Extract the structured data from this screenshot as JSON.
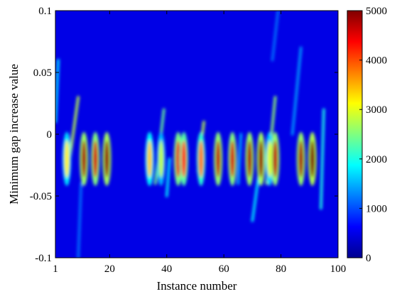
{
  "chart_data": {
    "type": "heatmap",
    "title": "",
    "xlabel": "Instance number",
    "ylabel": "Minimum gap increase value",
    "xlim": [
      1,
      100
    ],
    "ylim": [
      -0.1,
      0.1
    ],
    "x_ticks": [
      "1",
      "20",
      "40",
      "60",
      "80",
      "100"
    ],
    "y_ticks": [
      "-0.1",
      "-0.05",
      "0",
      "0.05",
      "0.1"
    ],
    "colorbar": {
      "colormap": "jet",
      "range": [
        0,
        5000
      ],
      "ticks": [
        "0",
        "1000",
        "2000",
        "3000",
        "4000",
        "5000"
      ]
    },
    "background_level": 500,
    "hotspots": [
      {
        "instance": 5,
        "gap": -0.02,
        "value": 3200
      },
      {
        "instance": 11,
        "gap": -0.02,
        "value": 4800
      },
      {
        "instance": 15,
        "gap": -0.02,
        "value": 4600
      },
      {
        "instance": 19,
        "gap": -0.02,
        "value": 4900
      },
      {
        "instance": 34,
        "gap": -0.02,
        "value": 3400
      },
      {
        "instance": 38,
        "gap": -0.02,
        "value": 2800
      },
      {
        "instance": 44,
        "gap": -0.02,
        "value": 4500
      },
      {
        "instance": 46,
        "gap": -0.02,
        "value": 4200
      },
      {
        "instance": 52,
        "gap": -0.02,
        "value": 3800
      },
      {
        "instance": 58,
        "gap": -0.02,
        "value": 4700
      },
      {
        "instance": 63,
        "gap": -0.02,
        "value": 4600
      },
      {
        "instance": 69,
        "gap": -0.02,
        "value": 4800
      },
      {
        "instance": 73,
        "gap": -0.02,
        "value": 4900
      },
      {
        "instance": 76,
        "gap": -0.02,
        "value": 3000
      },
      {
        "instance": 78,
        "gap": -0.02,
        "value": 4700
      },
      {
        "instance": 87,
        "gap": -0.02,
        "value": 4800
      },
      {
        "instance": 91,
        "gap": -0.02,
        "value": 5000
      }
    ],
    "streaks": [
      {
        "x": [
          1,
          2
        ],
        "gap": [
          0.01,
          0.06
        ],
        "value": 1800
      },
      {
        "x": [
          6,
          9
        ],
        "gap": [
          -0.02,
          0.03
        ],
        "value": 2800
      },
      {
        "x": [
          9,
          10
        ],
        "gap": [
          -0.1,
          -0.04
        ],
        "value": 1200
      },
      {
        "x": [
          36,
          39
        ],
        "gap": [
          -0.04,
          0.02
        ],
        "value": 2400
      },
      {
        "x": [
          40,
          41
        ],
        "gap": [
          -0.05,
          -0.02
        ],
        "value": 1800
      },
      {
        "x": [
          51,
          53
        ],
        "gap": [
          -0.03,
          0.01
        ],
        "value": 2800
      },
      {
        "x": [
          65,
          66
        ],
        "gap": [
          -0.04,
          0.0
        ],
        "value": 1500
      },
      {
        "x": [
          70,
          73
        ],
        "gap": [
          -0.07,
          -0.02
        ],
        "value": 1800
      },
      {
        "x": [
          75,
          78
        ],
        "gap": [
          -0.04,
          0.03
        ],
        "value": 2600
      },
      {
        "x": [
          77,
          79
        ],
        "gap": [
          0.06,
          0.1
        ],
        "value": 1200
      },
      {
        "x": [
          84,
          87
        ],
        "gap": [
          0.0,
          0.07
        ],
        "value": 1400
      },
      {
        "x": [
          94,
          95
        ],
        "gap": [
          -0.06,
          0.02
        ],
        "value": 2000
      }
    ],
    "grid": false,
    "legend": "none"
  }
}
